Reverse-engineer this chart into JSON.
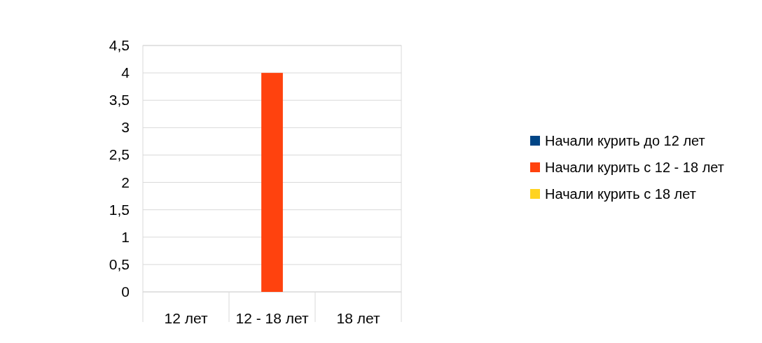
{
  "chart_data": {
    "type": "bar",
    "categories": [
      "12 лет",
      "12 - 18 лет",
      "18 лет"
    ],
    "series": [
      {
        "name": "Начали курить до 12 лет",
        "color": "#004586",
        "values": [
          0,
          0,
          0
        ]
      },
      {
        "name": "Начали курить с 12 - 18 лет",
        "color": "#ff420e",
        "values": [
          0,
          4,
          0
        ]
      },
      {
        "name": "Начали курить с 18 лет",
        "color": "#ffd320",
        "values": [
          0,
          0,
          0
        ]
      }
    ],
    "ylim": [
      0,
      4.5
    ],
    "yticks": [
      0,
      {
        "value": 0.5,
        "label": "0,5"
      },
      1,
      {
        "value": 1.5,
        "label": "1,5"
      },
      2,
      {
        "value": 2.5,
        "label": "2,5"
      },
      3,
      {
        "value": 3.5,
        "label": "3,5"
      },
      4,
      {
        "value": 4.5,
        "label": "4,5"
      }
    ],
    "grid": "y",
    "legend": "right"
  }
}
